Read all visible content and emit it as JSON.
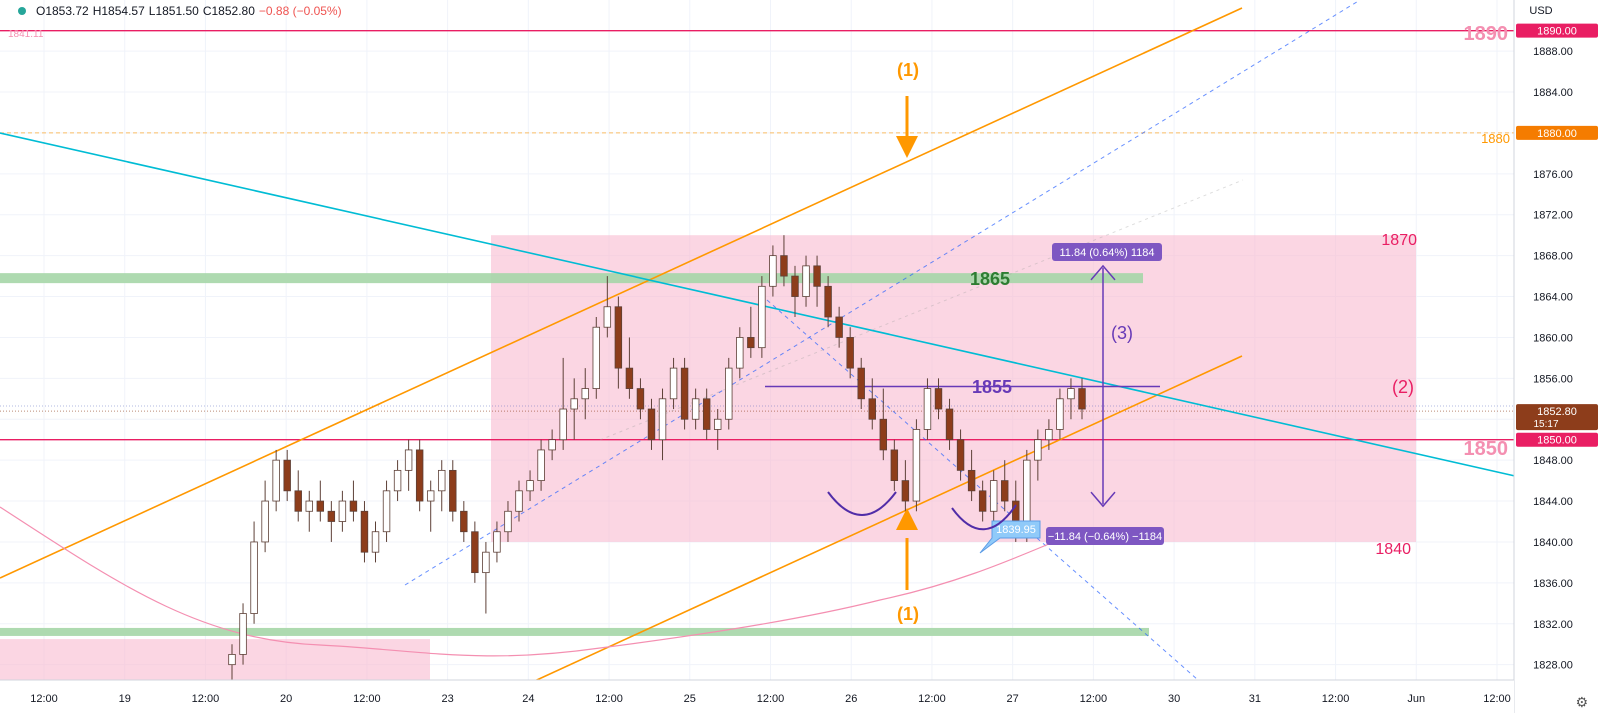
{
  "ohlc": {
    "open": "O1853.72",
    "high": "H1854.57",
    "low": "L1851.50",
    "close": "C1852.80",
    "change": "−0.88 (−0.05%)"
  },
  "currency": "USD",
  "colors": {
    "up": "#ffffff",
    "down": "#8d3d1b",
    "wick": "#5d4037",
    "orange": "#ff9800",
    "crimson": "#e91e63",
    "teal": "#00bcd4",
    "purple": "#673ab7",
    "green_zone": "#a5d6a7",
    "pink_zone": "#f8bbd0"
  },
  "chart_data": {
    "type": "candlestick",
    "y_range": [
      1826.5,
      1893
    ],
    "y_ticks": [
      "1828.00",
      "1832.00",
      "1836.00",
      "1840.00",
      "1844.00",
      "1848.00",
      "1852.00",
      "1856.00",
      "1860.00",
      "1864.00",
      "1868.00",
      "1872.00",
      "1876.00",
      "1880.00",
      "1884.00",
      "1888.00"
    ],
    "x_tick_labels": [
      "12:00",
      "19",
      "12:00",
      "20",
      "12:00",
      "23",
      "24",
      "12:00",
      "25",
      "12:00",
      "26",
      "12:00",
      "27",
      "12:00",
      "30",
      "31",
      "12:00",
      "Jun",
      "12:00"
    ],
    "price_tags": [
      {
        "label": "1890.00",
        "value": 1890,
        "color": "#e91e63"
      },
      {
        "label": "1880.00",
        "value": 1880,
        "color": "#f57c00"
      },
      {
        "label": "1852.80",
        "sub": "15:17",
        "value": 1852.8,
        "color": "#8d3d1b"
      },
      {
        "label": "1850.00",
        "value": 1850,
        "color": "#e91e63"
      }
    ],
    "horizontal_levels": [
      {
        "value": 1890,
        "label": "1890",
        "style": "solid",
        "color": "#e91e63"
      },
      {
        "value": 1880,
        "label": "1880",
        "style": "dashed",
        "color": "#ff9800"
      },
      {
        "value": 1850,
        "label": "1850",
        "style": "solid",
        "color": "#e91e63"
      }
    ],
    "left_label": "1841.11",
    "zones": [
      {
        "label_top": "1870",
        "label_bottom": "1840",
        "top": 1870,
        "bottom": 1840,
        "color": "#f8bbd0"
      },
      {
        "label": "1865",
        "value": 1865.8,
        "color": "#a5d6a7"
      },
      {
        "value": 1831.2,
        "color": "#a5d6a7"
      }
    ],
    "level_1855": {
      "label": "1855",
      "value": 1855.2
    },
    "measure": {
      "up_label": "11.84 (0.64%) 1184",
      "down_label": "−11.84 (−0.64%) −1184",
      "from": 1855.2,
      "to_up": 1867.0,
      "to_down": 1843.5
    },
    "markers": {
      "top_1": "(1)",
      "bottom_1": "(1)",
      "two": "(2)",
      "three": "(3)"
    },
    "low_callout": "1839.95",
    "candles": [
      [
        1828,
        1830,
        1826,
        1829
      ],
      [
        1829,
        1834,
        1828,
        1833
      ],
      [
        1833,
        1842,
        1832,
        1840
      ],
      [
        1840,
        1846,
        1839,
        1844
      ],
      [
        1844,
        1849,
        1843,
        1848
      ],
      [
        1848,
        1849,
        1844,
        1845
      ],
      [
        1845,
        1847,
        1842,
        1843
      ],
      [
        1843,
        1845,
        1841,
        1844
      ],
      [
        1844,
        1846,
        1842,
        1843
      ],
      [
        1843,
        1844,
        1840,
        1842
      ],
      [
        1842,
        1845,
        1841,
        1844
      ],
      [
        1844,
        1846,
        1842,
        1843
      ],
      [
        1843,
        1844,
        1838,
        1839
      ],
      [
        1839,
        1842,
        1838,
        1841
      ],
      [
        1841,
        1846,
        1840,
        1845
      ],
      [
        1845,
        1848,
        1844,
        1847
      ],
      [
        1847,
        1850,
        1845,
        1849
      ],
      [
        1849,
        1850,
        1843,
        1844
      ],
      [
        1844,
        1846,
        1841,
        1845
      ],
      [
        1845,
        1848,
        1843,
        1847
      ],
      [
        1847,
        1848,
        1842,
        1843
      ],
      [
        1843,
        1844,
        1840,
        1841
      ],
      [
        1841,
        1842,
        1836,
        1837
      ],
      [
        1837,
        1840,
        1833,
        1839
      ],
      [
        1839,
        1842,
        1838,
        1841
      ],
      [
        1841,
        1844,
        1840,
        1843
      ],
      [
        1843,
        1846,
        1842,
        1845
      ],
      [
        1845,
        1847,
        1844,
        1846
      ],
      [
        1846,
        1850,
        1845,
        1849
      ],
      [
        1849,
        1851,
        1848,
        1850
      ],
      [
        1850,
        1858,
        1849,
        1853
      ],
      [
        1853,
        1856,
        1850,
        1854
      ],
      [
        1854,
        1857,
        1852,
        1855
      ],
      [
        1855,
        1862,
        1854,
        1861
      ],
      [
        1861,
        1866,
        1860,
        1863
      ],
      [
        1863,
        1864,
        1855,
        1857
      ],
      [
        1857,
        1860,
        1854,
        1855
      ],
      [
        1855,
        1856,
        1852,
        1853
      ],
      [
        1853,
        1854,
        1849,
        1850
      ],
      [
        1850,
        1855,
        1848,
        1854
      ],
      [
        1854,
        1858,
        1853,
        1857
      ],
      [
        1857,
        1858,
        1851,
        1852
      ],
      [
        1852,
        1855,
        1851,
        1854
      ],
      [
        1854,
        1855,
        1850,
        1851
      ],
      [
        1851,
        1853,
        1849,
        1852
      ],
      [
        1852,
        1858,
        1851,
        1857
      ],
      [
        1857,
        1861,
        1856,
        1860
      ],
      [
        1860,
        1863,
        1858,
        1859
      ],
      [
        1859,
        1866,
        1858,
        1865
      ],
      [
        1865,
        1869,
        1864,
        1868
      ],
      [
        1868,
        1870,
        1865,
        1866
      ],
      [
        1866,
        1867,
        1862,
        1864
      ],
      [
        1864,
        1868,
        1863,
        1867
      ],
      [
        1867,
        1868,
        1863,
        1865
      ],
      [
        1865,
        1866,
        1861,
        1862
      ],
      [
        1862,
        1863,
        1859,
        1860
      ],
      [
        1860,
        1861,
        1856,
        1857
      ],
      [
        1857,
        1858,
        1853,
        1854
      ],
      [
        1854,
        1856,
        1851,
        1852
      ],
      [
        1852,
        1855,
        1848,
        1849
      ],
      [
        1849,
        1850,
        1845,
        1846
      ],
      [
        1846,
        1848,
        1843,
        1844
      ],
      [
        1844,
        1852,
        1843,
        1851
      ],
      [
        1851,
        1856,
        1850,
        1855
      ],
      [
        1855,
        1856,
        1852,
        1853
      ],
      [
        1853,
        1854,
        1849,
        1850
      ],
      [
        1850,
        1851,
        1846,
        1847
      ],
      [
        1847,
        1849,
        1844,
        1845
      ],
      [
        1845,
        1846,
        1842,
        1843
      ],
      [
        1843,
        1847,
        1842,
        1846
      ],
      [
        1846,
        1848,
        1843,
        1844
      ],
      [
        1844,
        1846,
        1840,
        1841
      ],
      [
        1841,
        1849,
        1840,
        1848
      ],
      [
        1848,
        1851,
        1846,
        1850
      ],
      [
        1850,
        1852,
        1849,
        1851
      ],
      [
        1851,
        1855,
        1850,
        1854
      ],
      [
        1854,
        1856,
        1852,
        1855
      ],
      [
        1855,
        1856,
        1852,
        1853
      ]
    ]
  }
}
